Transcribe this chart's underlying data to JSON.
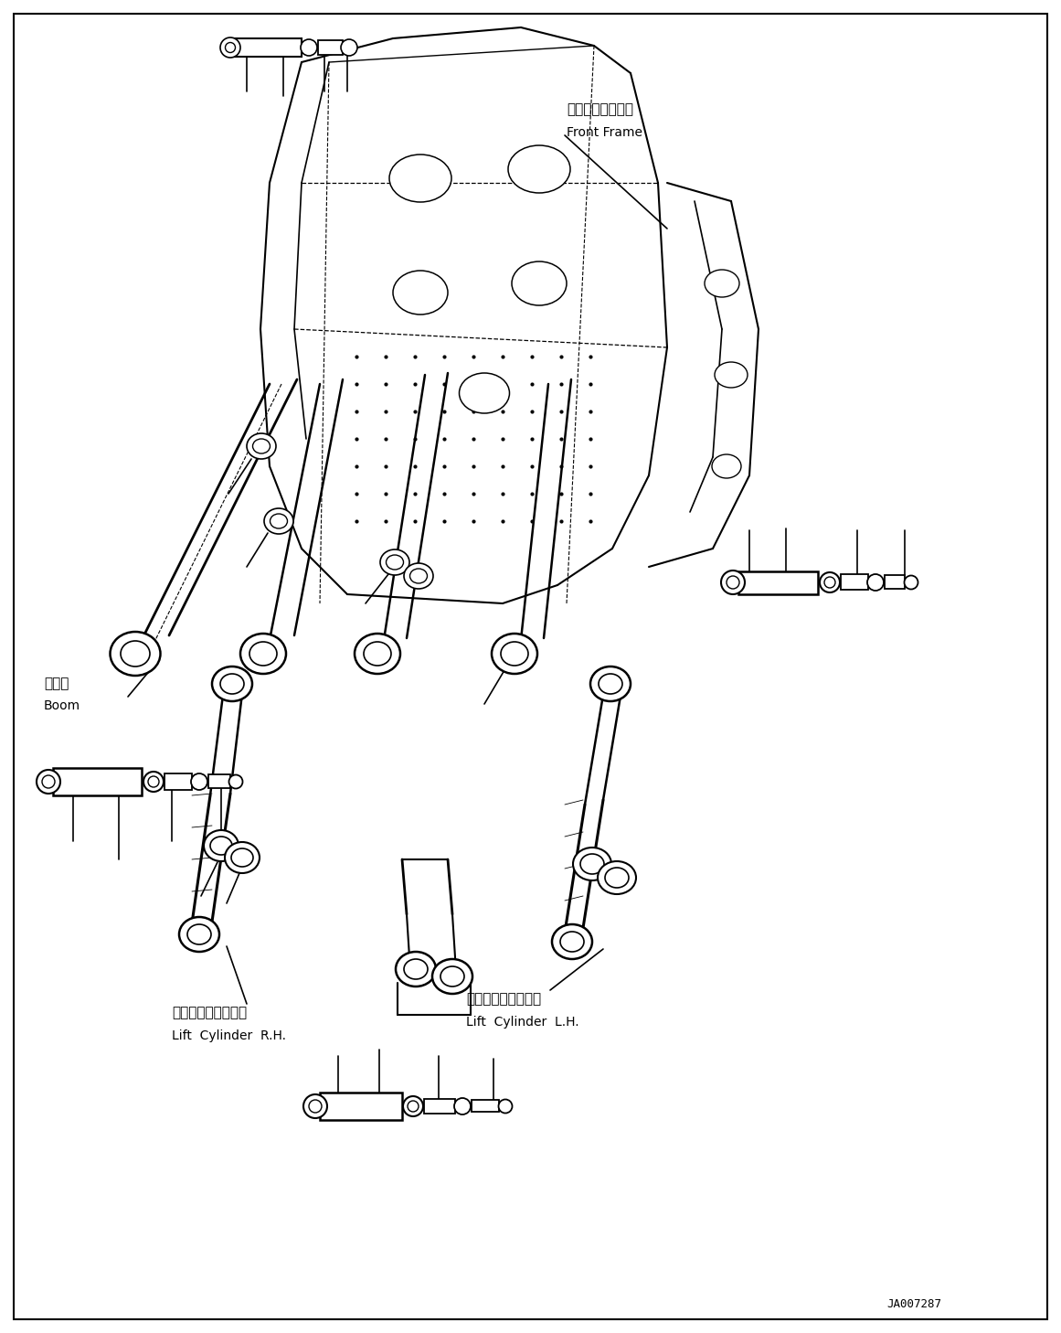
{
  "background_color": "#ffffff",
  "image_code": "JA007287",
  "labels": {
    "front_frame_jp": "フロントフレーム",
    "front_frame_en": "Front Frame",
    "boom_jp": "ブーム",
    "boom_en": "Boom",
    "lift_cyl_rh_jp": "リフトシリンダ　右",
    "lift_cyl_rh_en": "Lift  Cylinder  R.H.",
    "lift_cyl_lh_jp": "リフトシリンダ　左",
    "lift_cyl_lh_en": "Lift  Cylinder  L.H."
  },
  "font_sizes": {
    "label_jp": 11,
    "label_en": 10,
    "code": 9
  },
  "line_color": "#000000",
  "line_width": 1.2
}
